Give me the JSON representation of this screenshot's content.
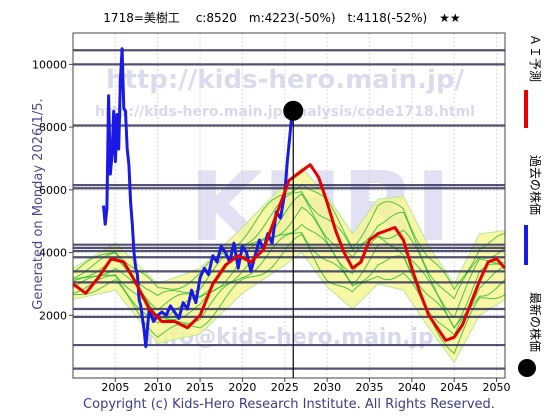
{
  "header": {
    "title": "1718=美樹工　 c:8520　m:4223(-50%)　t:4118(-52%)　★★"
  },
  "side_text": "Generated on Monday 2026/1/5.",
  "footer": {
    "copyright": "Copyright (c) Kids-Hero Research Institute. All Rights Reserved."
  },
  "watermark": {
    "url1": "http://kids-hero.main.jp/",
    "url2": "http://kids-hero.main.jp/analysis/code1718.html",
    "logo": "KHRI",
    "email": "info@kids-hero.main.jp"
  },
  "colors": {
    "actual": "#1a1ae6",
    "forecast": "#e60000",
    "green": "#33bb33",
    "band": "#f5f590",
    "band_edge": "#b5e8a0",
    "hline": "#34345a",
    "axis": "#444444"
  },
  "legend": [
    {
      "label": "ＡＩ予測",
      "marker": "line",
      "color": "#e60000"
    },
    {
      "label": "過去の株価",
      "marker": "line",
      "color": "#1a1ae6"
    },
    {
      "label": "最新の株価",
      "marker": "dot",
      "color": "#000000"
    }
  ],
  "chart_data": {
    "type": "line",
    "title": "1718=美樹工　 c:8520　m:4223(-50%)　t:4118(-52%)　★★",
    "x_ticks": [
      2005,
      2010,
      2015,
      2020,
      2025,
      2030,
      2035,
      2040,
      2045,
      2050
    ],
    "y_ticks": [
      2000,
      4000,
      6000,
      8000,
      10000
    ],
    "xlim": [
      2000,
      2051
    ],
    "ylim": [
      0,
      11000
    ],
    "grid": true,
    "current_marker": {
      "x": 2026.0,
      "y": 8520
    },
    "current_line_x": 2026.0,
    "horizontal_lines": [
      10450,
      10000,
      8050,
      6150,
      6050,
      4250,
      4150,
      4050,
      3850,
      3400,
      3050,
      2200,
      1950,
      1050,
      300
    ],
    "series": [
      {
        "name": "過去の株価",
        "color": "#1a1ae6",
        "points": [
          [
            2003.6,
            5500
          ],
          [
            2003.8,
            4900
          ],
          [
            2004.0,
            5400
          ],
          [
            2004.2,
            9000
          ],
          [
            2004.4,
            6500
          ],
          [
            2004.6,
            7100
          ],
          [
            2004.8,
            8500
          ],
          [
            2005.0,
            6900
          ],
          [
            2005.2,
            8400
          ],
          [
            2005.4,
            7300
          ],
          [
            2005.6,
            9500
          ],
          [
            2005.8,
            10500
          ],
          [
            2006.0,
            8600
          ],
          [
            2006.2,
            8500
          ],
          [
            2006.4,
            7300
          ],
          [
            2006.6,
            6800
          ],
          [
            2006.8,
            5600
          ],
          [
            2007.0,
            4900
          ],
          [
            2007.2,
            4000
          ],
          [
            2007.4,
            3500
          ],
          [
            2007.6,
            3300
          ],
          [
            2007.8,
            2500
          ],
          [
            2008.0,
            2300
          ],
          [
            2008.2,
            1900
          ],
          [
            2008.4,
            1500
          ],
          [
            2008.6,
            1000
          ],
          [
            2008.8,
            1600
          ],
          [
            2009.0,
            2200
          ],
          [
            2009.5,
            1800
          ],
          [
            2010.0,
            2000
          ],
          [
            2010.5,
            2100
          ],
          [
            2011.0,
            2000
          ],
          [
            2011.5,
            2300
          ],
          [
            2012.0,
            2100
          ],
          [
            2012.5,
            1900
          ],
          [
            2013.0,
            2400
          ],
          [
            2013.5,
            2200
          ],
          [
            2014.0,
            2800
          ],
          [
            2014.5,
            2400
          ],
          [
            2015.0,
            3200
          ],
          [
            2015.5,
            3500
          ],
          [
            2016.0,
            3300
          ],
          [
            2016.5,
            3900
          ],
          [
            2017.0,
            3700
          ],
          [
            2017.5,
            4200
          ],
          [
            2018.0,
            4000
          ],
          [
            2018.5,
            3700
          ],
          [
            2019.0,
            4300
          ],
          [
            2019.5,
            3500
          ],
          [
            2020.0,
            4200
          ],
          [
            2020.5,
            4000
          ],
          [
            2021.0,
            3400
          ],
          [
            2021.5,
            3900
          ],
          [
            2022.0,
            4400
          ],
          [
            2022.5,
            4100
          ],
          [
            2023.0,
            4600
          ],
          [
            2023.5,
            4300
          ],
          [
            2024.0,
            5300
          ],
          [
            2024.5,
            5100
          ],
          [
            2025.0,
            5900
          ],
          [
            2025.3,
            6900
          ],
          [
            2025.6,
            7700
          ],
          [
            2025.8,
            8300
          ],
          [
            2026.0,
            8520
          ]
        ]
      },
      {
        "name": "ＡＩ予測",
        "color": "#e60000",
        "points": [
          [
            2000.0,
            3000
          ],
          [
            2001.5,
            2700
          ],
          [
            2003.0,
            3200
          ],
          [
            2004.5,
            3800
          ],
          [
            2006.0,
            3700
          ],
          [
            2007.5,
            3000
          ],
          [
            2009.0,
            2200
          ],
          [
            2010.5,
            1800
          ],
          [
            2012.0,
            1800
          ],
          [
            2013.5,
            1600
          ],
          [
            2015.0,
            2000
          ],
          [
            2016.5,
            3000
          ],
          [
            2018.0,
            3600
          ],
          [
            2019.5,
            3900
          ],
          [
            2021.0,
            3700
          ],
          [
            2022.5,
            4100
          ],
          [
            2024.0,
            5200
          ],
          [
            2025.5,
            6300
          ],
          [
            2027.0,
            6600
          ],
          [
            2028.0,
            6800
          ],
          [
            2029.0,
            6400
          ],
          [
            2030.0,
            5600
          ],
          [
            2031.0,
            4700
          ],
          [
            2032.0,
            4000
          ],
          [
            2033.0,
            3500
          ],
          [
            2034.0,
            3700
          ],
          [
            2035.0,
            4400
          ],
          [
            2036.0,
            4600
          ],
          [
            2037.0,
            4700
          ],
          [
            2038.0,
            4800
          ],
          [
            2039.0,
            4400
          ],
          [
            2040.0,
            3500
          ],
          [
            2041.0,
            2700
          ],
          [
            2042.0,
            2000
          ],
          [
            2043.0,
            1600
          ],
          [
            2044.0,
            1200
          ],
          [
            2045.0,
            1300
          ],
          [
            2046.0,
            1700
          ],
          [
            2047.0,
            2400
          ],
          [
            2048.0,
            3100
          ],
          [
            2049.0,
            3700
          ],
          [
            2050.0,
            3800
          ],
          [
            2051.0,
            3500
          ]
        ]
      }
    ],
    "band": {
      "upper": [
        [
          2000,
          3500
        ],
        [
          2005,
          4300
        ],
        [
          2010,
          3000
        ],
        [
          2015,
          3500
        ],
        [
          2020,
          4800
        ],
        [
          2025,
          6200
        ],
        [
          2027,
          6700
        ],
        [
          2030,
          5800
        ],
        [
          2033,
          4600
        ],
        [
          2036,
          5700
        ],
        [
          2039,
          5800
        ],
        [
          2042,
          4200
        ],
        [
          2045,
          3000
        ],
        [
          2048,
          4600
        ],
        [
          2051,
          4700
        ]
      ],
      "lower": [
        [
          2000,
          2500
        ],
        [
          2005,
          2800
        ],
        [
          2010,
          1100
        ],
        [
          2015,
          1400
        ],
        [
          2020,
          2700
        ],
        [
          2025,
          3600
        ],
        [
          2027,
          4000
        ],
        [
          2030,
          2900
        ],
        [
          2033,
          2200
        ],
        [
          2036,
          3000
        ],
        [
          2039,
          2800
        ],
        [
          2042,
          1600
        ],
        [
          2045,
          500
        ],
        [
          2048,
          2000
        ],
        [
          2051,
          2500
        ]
      ]
    }
  }
}
